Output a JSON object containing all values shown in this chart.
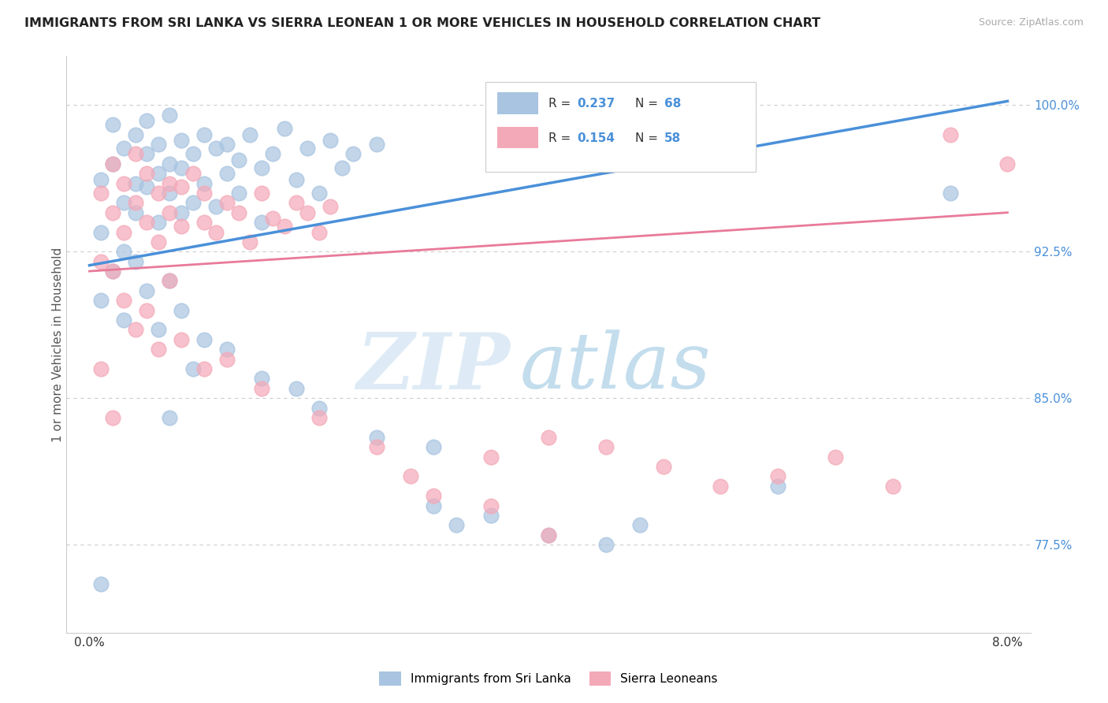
{
  "title": "IMMIGRANTS FROM SRI LANKA VS SIERRA LEONEAN 1 OR MORE VEHICLES IN HOUSEHOLD CORRELATION CHART",
  "source": "Source: ZipAtlas.com",
  "ylabel": "1 or more Vehicles in Household",
  "legend_label_blue": "Immigrants from Sri Lanka",
  "legend_label_pink": "Sierra Leoneans",
  "R_blue": 0.237,
  "N_blue": 68,
  "R_pink": 0.154,
  "N_pink": 58,
  "watermark_zip": "ZIP",
  "watermark_atlas": "atlas",
  "blue_color": "#a8c4e0",
  "pink_color": "#f4a9b8",
  "line_blue": "#4a90d9",
  "line_pink": "#e87a9a",
  "scatter_blue": [
    [
      0.001,
      93.5
    ],
    [
      0.001,
      96.2
    ],
    [
      0.002,
      97.0
    ],
    [
      0.002,
      99.0
    ],
    [
      0.003,
      95.0
    ],
    [
      0.003,
      92.5
    ],
    [
      0.003,
      97.8
    ],
    [
      0.004,
      96.0
    ],
    [
      0.004,
      98.5
    ],
    [
      0.004,
      94.5
    ],
    [
      0.005,
      97.5
    ],
    [
      0.005,
      95.8
    ],
    [
      0.005,
      99.2
    ],
    [
      0.006,
      96.5
    ],
    [
      0.006,
      98.0
    ],
    [
      0.006,
      94.0
    ],
    [
      0.007,
      97.0
    ],
    [
      0.007,
      95.5
    ],
    [
      0.007,
      99.5
    ],
    [
      0.008,
      96.8
    ],
    [
      0.008,
      98.2
    ],
    [
      0.008,
      94.5
    ],
    [
      0.009,
      97.5
    ],
    [
      0.009,
      95.0
    ],
    [
      0.01,
      98.5
    ],
    [
      0.01,
      96.0
    ],
    [
      0.011,
      97.8
    ],
    [
      0.011,
      94.8
    ],
    [
      0.012,
      98.0
    ],
    [
      0.012,
      96.5
    ],
    [
      0.013,
      97.2
    ],
    [
      0.013,
      95.5
    ],
    [
      0.014,
      98.5
    ],
    [
      0.015,
      96.8
    ],
    [
      0.015,
      94.0
    ],
    [
      0.016,
      97.5
    ],
    [
      0.017,
      98.8
    ],
    [
      0.018,
      96.2
    ],
    [
      0.019,
      97.8
    ],
    [
      0.02,
      95.5
    ],
    [
      0.021,
      98.2
    ],
    [
      0.022,
      96.8
    ],
    [
      0.023,
      97.5
    ],
    [
      0.025,
      98.0
    ],
    [
      0.001,
      90.0
    ],
    [
      0.002,
      91.5
    ],
    [
      0.003,
      89.0
    ],
    [
      0.004,
      92.0
    ],
    [
      0.005,
      90.5
    ],
    [
      0.006,
      88.5
    ],
    [
      0.007,
      91.0
    ],
    [
      0.008,
      89.5
    ],
    [
      0.01,
      88.0
    ],
    [
      0.012,
      87.5
    ],
    [
      0.015,
      86.0
    ],
    [
      0.018,
      85.5
    ],
    [
      0.02,
      84.5
    ],
    [
      0.025,
      83.0
    ],
    [
      0.03,
      82.5
    ],
    [
      0.03,
      79.5
    ],
    [
      0.032,
      78.5
    ],
    [
      0.035,
      79.0
    ],
    [
      0.04,
      78.0
    ],
    [
      0.045,
      77.5
    ],
    [
      0.048,
      78.5
    ],
    [
      0.06,
      80.5
    ],
    [
      0.075,
      95.5
    ],
    [
      0.001,
      75.5
    ],
    [
      0.007,
      84.0
    ],
    [
      0.009,
      86.5
    ]
  ],
  "scatter_pink": [
    [
      0.001,
      95.5
    ],
    [
      0.001,
      92.0
    ],
    [
      0.002,
      97.0
    ],
    [
      0.002,
      94.5
    ],
    [
      0.003,
      96.0
    ],
    [
      0.003,
      93.5
    ],
    [
      0.004,
      95.0
    ],
    [
      0.004,
      97.5
    ],
    [
      0.005,
      94.0
    ],
    [
      0.005,
      96.5
    ],
    [
      0.006,
      95.5
    ],
    [
      0.006,
      93.0
    ],
    [
      0.007,
      96.0
    ],
    [
      0.007,
      94.5
    ],
    [
      0.008,
      95.8
    ],
    [
      0.008,
      93.8
    ],
    [
      0.009,
      96.5
    ],
    [
      0.01,
      94.0
    ],
    [
      0.01,
      95.5
    ],
    [
      0.011,
      93.5
    ],
    [
      0.012,
      95.0
    ],
    [
      0.013,
      94.5
    ],
    [
      0.014,
      93.0
    ],
    [
      0.015,
      95.5
    ],
    [
      0.016,
      94.2
    ],
    [
      0.017,
      93.8
    ],
    [
      0.018,
      95.0
    ],
    [
      0.019,
      94.5
    ],
    [
      0.02,
      93.5
    ],
    [
      0.021,
      94.8
    ],
    [
      0.002,
      91.5
    ],
    [
      0.003,
      90.0
    ],
    [
      0.004,
      88.5
    ],
    [
      0.005,
      89.5
    ],
    [
      0.006,
      87.5
    ],
    [
      0.007,
      91.0
    ],
    [
      0.008,
      88.0
    ],
    [
      0.01,
      86.5
    ],
    [
      0.012,
      87.0
    ],
    [
      0.015,
      85.5
    ],
    [
      0.02,
      84.0
    ],
    [
      0.025,
      82.5
    ],
    [
      0.028,
      81.0
    ],
    [
      0.03,
      80.0
    ],
    [
      0.035,
      79.5
    ],
    [
      0.04,
      78.0
    ],
    [
      0.035,
      82.0
    ],
    [
      0.04,
      83.0
    ],
    [
      0.045,
      82.5
    ],
    [
      0.05,
      81.5
    ],
    [
      0.055,
      80.5
    ],
    [
      0.06,
      81.0
    ],
    [
      0.065,
      82.0
    ],
    [
      0.07,
      80.5
    ],
    [
      0.075,
      98.5
    ],
    [
      0.08,
      97.0
    ],
    [
      0.001,
      86.5
    ],
    [
      0.002,
      84.0
    ]
  ],
  "xlim_min": 0.0,
  "xlim_max": 0.08,
  "ylim_min": 73.0,
  "ylim_max": 102.5
}
